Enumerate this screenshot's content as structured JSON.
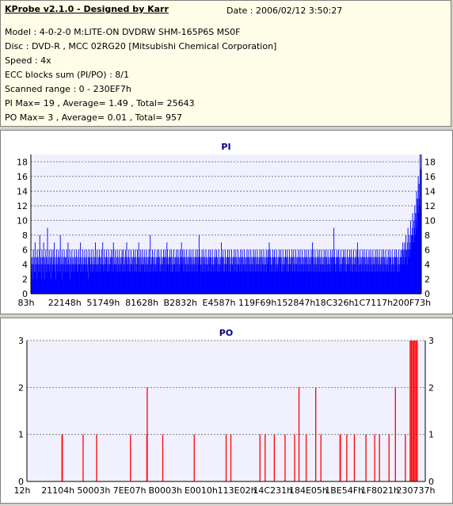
{
  "header": {
    "app_title": "KProbe v2.1.0 - Designed by Karr",
    "date_line": "Date : 2006/02/12 3:50:27",
    "lines": [
      "Model : 4-0-2-0 M:LITE-ON DVDRW SHM-165P6S MS0F",
      "Disc : DVD-R , MCC 02RG20  [Mitsubishi Chemical Corporation]",
      "Speed : 4x",
      "ECC blocks sum (PI/PO) : 8/1",
      "Scanned range : 0 - 230EF7h",
      "PI Max= 19 , Average= 1.49 , Total= 25643",
      "PO Max= 3 , Average= 0.01 , Total= 957"
    ]
  },
  "colors": {
    "pi_fill": "#0000ff",
    "po_bar": "#ff0000",
    "plot_bg": "#f0f0ff",
    "grid": "#808080",
    "title_text": "#000080"
  },
  "chart_data": [
    {
      "type": "bar",
      "title": "PI",
      "ylim": [
        0,
        19
      ],
      "yticks": [
        0,
        2,
        4,
        6,
        8,
        10,
        12,
        14,
        16,
        18
      ],
      "x_tick_labels": [
        "83h",
        "22148h",
        "51749h",
        "81628h",
        "B2832h",
        "E4587h",
        "119F69h",
        "152847h",
        "18C326h",
        "1C7117h",
        "200F73h"
      ],
      "x_range": [
        "0",
        "230EF7h"
      ],
      "series": [
        {
          "values": [
            5,
            3,
            4,
            5,
            2,
            6,
            4,
            3,
            5,
            7,
            3,
            4,
            5,
            2,
            6,
            4,
            5,
            3,
            4,
            6,
            8,
            3,
            5,
            4,
            2,
            6,
            4,
            5,
            3,
            7,
            4,
            5,
            2,
            4,
            6,
            3,
            5,
            4,
            9,
            3,
            4,
            5,
            6,
            3,
            4,
            5,
            2,
            6,
            5,
            4,
            3,
            6,
            4,
            5,
            7,
            3,
            4,
            5,
            2,
            6,
            4,
            3,
            5,
            4,
            6,
            3,
            5,
            4,
            8,
            3,
            4,
            5,
            6,
            2,
            4,
            5,
            3,
            6,
            4,
            5,
            3,
            5,
            4,
            6,
            3,
            4,
            7,
            5,
            3,
            4,
            6,
            2,
            5,
            4,
            3,
            6,
            4,
            5,
            3,
            4,
            5,
            6,
            3,
            4,
            5,
            4,
            6,
            3,
            5,
            4,
            3,
            6,
            5,
            4,
            3,
            7,
            4,
            5,
            3,
            4,
            6,
            5,
            3,
            4,
            5,
            6,
            4,
            3,
            5,
            4,
            6,
            3,
            4,
            5,
            2,
            6,
            4,
            5,
            3,
            4,
            6,
            5,
            4,
            3,
            5,
            6,
            4,
            3,
            5,
            4,
            7,
            3,
            4,
            5,
            6,
            3,
            4,
            5,
            4,
            6,
            3,
            5,
            4,
            3,
            6,
            5,
            4,
            7,
            3,
            4,
            5,
            6,
            3,
            4,
            5,
            4,
            6,
            3,
            5,
            4,
            3,
            6,
            5,
            4,
            3,
            5,
            4,
            6,
            3,
            5,
            4,
            6,
            7,
            3,
            4,
            5,
            6,
            4,
            3,
            5,
            4,
            6,
            3,
            5,
            4,
            3,
            6,
            5,
            4,
            3,
            5,
            4,
            6,
            3,
            5,
            6,
            4,
            3,
            5,
            4,
            6,
            3,
            5,
            7,
            4,
            3,
            5,
            4,
            6,
            3,
            5,
            4,
            3,
            6,
            5,
            4,
            3,
            5,
            4,
            6,
            3,
            5,
            4,
            6,
            3,
            5,
            4,
            3,
            6,
            5,
            4,
            7,
            3,
            5,
            4,
            6,
            3,
            4,
            5,
            6,
            3,
            4,
            5,
            4,
            6,
            3,
            5,
            4,
            3,
            6,
            5,
            4,
            3,
            5,
            4,
            6,
            3,
            5,
            8,
            4,
            3,
            5,
            4,
            6,
            3,
            5,
            4,
            3,
            6,
            5,
            4,
            3,
            5,
            4,
            6,
            3,
            5,
            4,
            6,
            3,
            5,
            4,
            3,
            6,
            5,
            4,
            3,
            5,
            4,
            6,
            3,
            5,
            4,
            6,
            3,
            5,
            4,
            7,
            6,
            5,
            4,
            3,
            5,
            4,
            6,
            3,
            5,
            4,
            6,
            3,
            5,
            4,
            3,
            6,
            5,
            4,
            3,
            5,
            4,
            6,
            3,
            5,
            4,
            6,
            3,
            5,
            4,
            3,
            6,
            5,
            4,
            7,
            5,
            4,
            6,
            3,
            5,
            4,
            6,
            3,
            5,
            4,
            3,
            6,
            5,
            4,
            3,
            5,
            4,
            6,
            3,
            5,
            4,
            6,
            3,
            5,
            4,
            3,
            6,
            5,
            4,
            3,
            5,
            4,
            6,
            3,
            5,
            4,
            6,
            3,
            5,
            4,
            8,
            6,
            5,
            4,
            3,
            5,
            4,
            6,
            3,
            5,
            4,
            6,
            3,
            5,
            4,
            3,
            6,
            5,
            4,
            3,
            5,
            4,
            6,
            3,
            5,
            4,
            6,
            3,
            5,
            4,
            3,
            6,
            5,
            4,
            3,
            5,
            4,
            6,
            3,
            5,
            4,
            6,
            3,
            5,
            4,
            3,
            6,
            5,
            4,
            3,
            5,
            4,
            7,
            3,
            5,
            4,
            6,
            3,
            5,
            4,
            3,
            6,
            5,
            4,
            3,
            5,
            4,
            6,
            3,
            5,
            4,
            6,
            3,
            5,
            4,
            3,
            6,
            5,
            4,
            3,
            5,
            4,
            6,
            3,
            5,
            4,
            6,
            3,
            5,
            4,
            3,
            6,
            5,
            4,
            3,
            5,
            4,
            6,
            3,
            5,
            4,
            6,
            3,
            5,
            4,
            3,
            6,
            5,
            4,
            3,
            5,
            4,
            6,
            3,
            5,
            4,
            6,
            3,
            5,
            4,
            3,
            6,
            5,
            4,
            3,
            5,
            4,
            6,
            3,
            5,
            4,
            6,
            3,
            5,
            4,
            3,
            6,
            5,
            4,
            3,
            5,
            4,
            6,
            3,
            5,
            4,
            6,
            3,
            5,
            4,
            3,
            6,
            5,
            4,
            3,
            5,
            4,
            6,
            3,
            5,
            4,
            6,
            4,
            5,
            7,
            3,
            6,
            5,
            4,
            3,
            5,
            4,
            6,
            3,
            5,
            4,
            6,
            3,
            5,
            4,
            3,
            6,
            5,
            4,
            3,
            5,
            4,
            6,
            3,
            5,
            4,
            6,
            3,
            5,
            4,
            3,
            6,
            5,
            4,
            3,
            5,
            4,
            6,
            3,
            5,
            4,
            6,
            3,
            5,
            4,
            3,
            6,
            5,
            4,
            3,
            5,
            4,
            6,
            3,
            5,
            4,
            6,
            3,
            5,
            4,
            3,
            6,
            5,
            4,
            3,
            5,
            4,
            6,
            3,
            5,
            4,
            6,
            3,
            5,
            4,
            3,
            6,
            5,
            4,
            3,
            5,
            4,
            6,
            3,
            5,
            4,
            6,
            3,
            5,
            4,
            3,
            6,
            5,
            4,
            3,
            5,
            4,
            6,
            3,
            5,
            7,
            6,
            3,
            5,
            4,
            3,
            6,
            5,
            4,
            3,
            5,
            4,
            6,
            3,
            5,
            4,
            6,
            3,
            5,
            4,
            3,
            6,
            5,
            4,
            3,
            5,
            4,
            6,
            3,
            5,
            4,
            6,
            3,
            5,
            4,
            3,
            6,
            5,
            4,
            3,
            5,
            4,
            6,
            3,
            5,
            4,
            6,
            3,
            5,
            4,
            9,
            6,
            5,
            4,
            3,
            5,
            4,
            6,
            3,
            5,
            4,
            6,
            3,
            5,
            4,
            3,
            6,
            5,
            4,
            3,
            5,
            4,
            6,
            3,
            5,
            4,
            6,
            3,
            5,
            4,
            3,
            6,
            5,
            4,
            3,
            5,
            4,
            6,
            3,
            5,
            4,
            6,
            3,
            5,
            4,
            3,
            6,
            5,
            4,
            3,
            5,
            4,
            6,
            3,
            5,
            7,
            6,
            3,
            5,
            4,
            3,
            6,
            5,
            4,
            3,
            5,
            4,
            6,
            3,
            5,
            4,
            6,
            3,
            5,
            4,
            3,
            6,
            5,
            4,
            3,
            5,
            4,
            6,
            3,
            5,
            4,
            6,
            3,
            5,
            4,
            3,
            6,
            5,
            4,
            3,
            5,
            4,
            6,
            3,
            5,
            4,
            6,
            3,
            5,
            4,
            3,
            6,
            5,
            4,
            3,
            5,
            4,
            6,
            3,
            5,
            4,
            6,
            3,
            5,
            4,
            3,
            6,
            5,
            4,
            3,
            5,
            4,
            6,
            3,
            5,
            4,
            6,
            3,
            5,
            4,
            3,
            6,
            5,
            4,
            3,
            5,
            4,
            6,
            3,
            5,
            4,
            6,
            3,
            5,
            4,
            3,
            6,
            5,
            4,
            3,
            5,
            6,
            4,
            5,
            6,
            4,
            7,
            5,
            6,
            4,
            7,
            5,
            6,
            8,
            5,
            6,
            4,
            7,
            9,
            6,
            5,
            8,
            6,
            7,
            10,
            6,
            8,
            7,
            9,
            11,
            8,
            7,
            10,
            9,
            12,
            8,
            11,
            10,
            14,
            9,
            13,
            12,
            16,
            11,
            15,
            13,
            19,
            12,
            17,
            14
          ]
        }
      ]
    },
    {
      "type": "bar",
      "title": "PO",
      "ylim": [
        0,
        3
      ],
      "yticks": [
        0,
        1,
        2,
        3
      ],
      "x_tick_labels": [
        "12h",
        "21104h",
        "50003h",
        "7EE07h",
        "B0003h",
        "E0010h",
        "113E02h",
        "14C231h",
        "184E05h",
        "1BE54Fh",
        "1F8021h",
        "230737h"
      ],
      "x_range": [
        "0",
        "230EF7h"
      ],
      "series": [
        {
          "points": [
            [
              0.088,
              1
            ],
            [
              0.089,
              1
            ],
            [
              0.141,
              1
            ],
            [
              0.175,
              1
            ],
            [
              0.26,
              1
            ],
            [
              0.301,
              1
            ],
            [
              0.302,
              2
            ],
            [
              0.341,
              1
            ],
            [
              0.42,
              1
            ],
            [
              0.5,
              1
            ],
            [
              0.512,
              1
            ],
            [
              0.585,
              1
            ],
            [
              0.598,
              1
            ],
            [
              0.621,
              1
            ],
            [
              0.648,
              1
            ],
            [
              0.672,
              1
            ],
            [
              0.683,
              2
            ],
            [
              0.701,
              1
            ],
            [
              0.725,
              2
            ],
            [
              0.738,
              1
            ],
            [
              0.786,
              1
            ],
            [
              0.787,
              1
            ],
            [
              0.803,
              1
            ],
            [
              0.822,
              1
            ],
            [
              0.851,
              1
            ],
            [
              0.873,
              1
            ],
            [
              0.885,
              1
            ],
            [
              0.909,
              1
            ],
            [
              0.925,
              2
            ],
            [
              0.95,
              1
            ],
            [
              0.962,
              3
            ],
            [
              0.965,
              3
            ],
            [
              0.968,
              3
            ],
            [
              0.971,
              3
            ],
            [
              0.974,
              3
            ],
            [
              0.977,
              3
            ],
            [
              0.98,
              3
            ]
          ]
        }
      ]
    }
  ]
}
